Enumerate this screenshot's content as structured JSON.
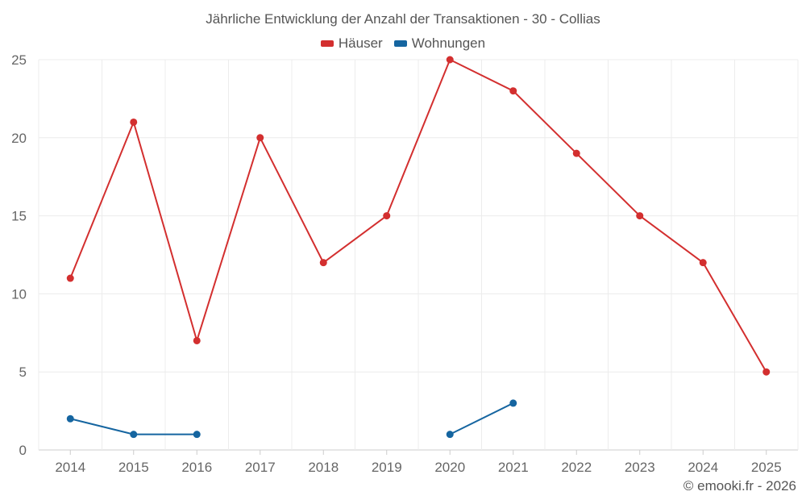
{
  "chart_data": {
    "type": "line",
    "title": "Jährliche Entwicklung der Anzahl der Transaktionen - 30 - Collias",
    "categories": [
      "2014",
      "2015",
      "2016",
      "2017",
      "2018",
      "2019",
      "2020",
      "2021",
      "2022",
      "2023",
      "2024",
      "2025"
    ],
    "series": [
      {
        "name": "Häuser",
        "color": "#d32f2f",
        "values": [
          11,
          21,
          7,
          20,
          12,
          15,
          25,
          23,
          19,
          15,
          12,
          5
        ]
      },
      {
        "name": "Wohnungen",
        "color": "#1565a0",
        "values": [
          2,
          1,
          1,
          null,
          null,
          null,
          1,
          3,
          null,
          null,
          null,
          null
        ]
      }
    ],
    "yticks": [
      0,
      5,
      10,
      15,
      20,
      25
    ],
    "ylim": [
      0,
      25
    ],
    "xlabel": "",
    "ylabel": "",
    "grid": true,
    "legend": "top-center"
  },
  "footer": "© emooki.fr - 2026"
}
